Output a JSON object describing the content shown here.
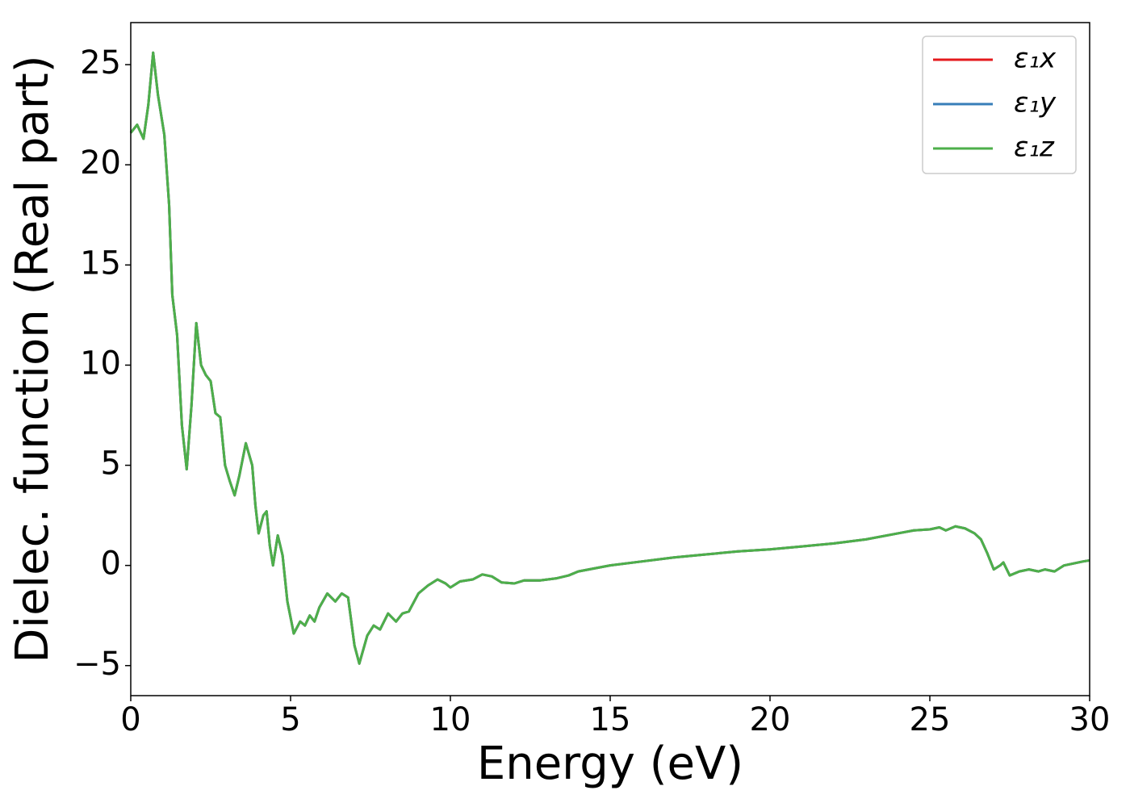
{
  "chart_data": {
    "type": "line",
    "xlabel": "Energy (eV)",
    "ylabel": "Dielec. function (Real part)",
    "x": [
      0,
      0.2,
      0.4,
      0.55,
      0.7,
      0.85,
      1.05,
      1.2,
      1.3,
      1.45,
      1.6,
      1.75,
      1.9,
      2.05,
      2.2,
      2.35,
      2.5,
      2.65,
      2.8,
      2.95,
      3.1,
      3.25,
      3.4,
      3.6,
      3.8,
      3.9,
      4.0,
      4.15,
      4.25,
      4.35,
      4.45,
      4.6,
      4.75,
      4.9,
      5.1,
      5.3,
      5.45,
      5.6,
      5.75,
      5.9,
      6.15,
      6.4,
      6.6,
      6.8,
      7.0,
      7.15,
      7.4,
      7.6,
      7.8,
      8.05,
      8.3,
      8.5,
      8.7,
      9.0,
      9.3,
      9.6,
      9.85,
      10.0,
      10.3,
      10.7,
      11.0,
      11.3,
      11.6,
      12.0,
      12.3,
      12.8,
      13.3,
      13.7,
      14.0,
      15.0,
      16.0,
      17.0,
      18.0,
      19.0,
      20.0,
      21.0,
      22.0,
      23.0,
      24.0,
      24.5,
      25.0,
      25.3,
      25.5,
      25.8,
      26.1,
      26.4,
      26.6,
      26.8,
      27.0,
      27.2,
      27.3,
      27.5,
      27.8,
      28.1,
      28.4,
      28.6,
      28.9,
      29.2,
      29.5,
      29.8,
      30.0
    ],
    "series": [
      {
        "name": "ε₁x",
        "color": "#e41a1c",
        "values": [
          21.6,
          22.0,
          21.3,
          23,
          25.6,
          23.5,
          21.5,
          18,
          13.5,
          11.5,
          7,
          4.8,
          8,
          12.1,
          10,
          9.5,
          9.2,
          7.6,
          7.4,
          5,
          4.2,
          3.5,
          4.5,
          6.1,
          5,
          3,
          1.6,
          2.5,
          2.7,
          1,
          0,
          1.5,
          0.5,
          -1.8,
          -3.4,
          -2.8,
          -3,
          -2.5,
          -2.8,
          -2.1,
          -1.4,
          -1.8,
          -1.4,
          -1.6,
          -4,
          -4.9,
          -3.5,
          -3,
          -3.2,
          -2.4,
          -2.8,
          -2.4,
          -2.3,
          -1.4,
          -1,
          -0.7,
          -0.9,
          -1.1,
          -0.8,
          -0.7,
          -0.45,
          -0.55,
          -0.85,
          -0.9,
          -0.75,
          -0.75,
          -0.65,
          -0.5,
          -0.3,
          0,
          0.2,
          0.4,
          0.55,
          0.7,
          0.8,
          0.95,
          1.1,
          1.3,
          1.6,
          1.75,
          1.8,
          1.9,
          1.75,
          1.95,
          1.85,
          1.6,
          1.3,
          0.6,
          -0.2,
          0,
          0.15,
          -0.5,
          -0.3,
          -0.2,
          -0.3,
          -0.2,
          -0.3,
          0,
          0.1,
          0.2,
          0.25
        ]
      },
      {
        "name": "ε₁y",
        "color": "#377eb8",
        "values": [
          21.6,
          22.0,
          21.3,
          23,
          25.6,
          23.5,
          21.5,
          18,
          13.5,
          11.5,
          7,
          4.8,
          8,
          12.1,
          10,
          9.5,
          9.2,
          7.6,
          7.4,
          5,
          4.2,
          3.5,
          4.5,
          6.1,
          5,
          3,
          1.6,
          2.5,
          2.7,
          1,
          0,
          1.5,
          0.5,
          -1.8,
          -3.4,
          -2.8,
          -3,
          -2.5,
          -2.8,
          -2.1,
          -1.4,
          -1.8,
          -1.4,
          -1.6,
          -4,
          -4.9,
          -3.5,
          -3,
          -3.2,
          -2.4,
          -2.8,
          -2.4,
          -2.3,
          -1.4,
          -1,
          -0.7,
          -0.9,
          -1.1,
          -0.8,
          -0.7,
          -0.45,
          -0.55,
          -0.85,
          -0.9,
          -0.75,
          -0.75,
          -0.65,
          -0.5,
          -0.3,
          0,
          0.2,
          0.4,
          0.55,
          0.7,
          0.8,
          0.95,
          1.1,
          1.3,
          1.6,
          1.75,
          1.8,
          1.9,
          1.75,
          1.95,
          1.85,
          1.6,
          1.3,
          0.6,
          -0.2,
          0,
          0.15,
          -0.5,
          -0.3,
          -0.2,
          -0.3,
          -0.2,
          -0.3,
          0,
          0.1,
          0.2,
          0.25
        ]
      },
      {
        "name": "ε₁z",
        "color": "#4daf4a",
        "values": [
          21.6,
          22.0,
          21.3,
          23,
          25.6,
          23.5,
          21.5,
          18,
          13.5,
          11.5,
          7,
          4.8,
          8,
          12.1,
          10,
          9.5,
          9.2,
          7.6,
          7.4,
          5,
          4.2,
          3.5,
          4.5,
          6.1,
          5,
          3,
          1.6,
          2.5,
          2.7,
          1,
          0,
          1.5,
          0.5,
          -1.8,
          -3.4,
          -2.8,
          -3,
          -2.5,
          -2.8,
          -2.1,
          -1.4,
          -1.8,
          -1.4,
          -1.6,
          -4,
          -4.9,
          -3.5,
          -3,
          -3.2,
          -2.4,
          -2.8,
          -2.4,
          -2.3,
          -1.4,
          -1,
          -0.7,
          -0.9,
          -1.1,
          -0.8,
          -0.7,
          -0.45,
          -0.55,
          -0.85,
          -0.9,
          -0.75,
          -0.75,
          -0.65,
          -0.5,
          -0.3,
          0,
          0.2,
          0.4,
          0.55,
          0.7,
          0.8,
          0.95,
          1.1,
          1.3,
          1.6,
          1.75,
          1.8,
          1.9,
          1.75,
          1.95,
          1.85,
          1.6,
          1.3,
          0.6,
          -0.2,
          0,
          0.15,
          -0.5,
          -0.3,
          -0.2,
          -0.3,
          -0.2,
          -0.3,
          0,
          0.1,
          0.2,
          0.25
        ]
      }
    ],
    "xlim": [
      0,
      30
    ],
    "ylim": [
      -6.5,
      27.1
    ],
    "xticks": [
      0,
      5,
      10,
      15,
      20,
      25,
      30
    ],
    "yticks": [
      {
        "value": -5,
        "label": "−5"
      },
      0,
      5,
      10,
      15,
      20,
      25
    ],
    "grid": false,
    "legend": "upper right"
  }
}
